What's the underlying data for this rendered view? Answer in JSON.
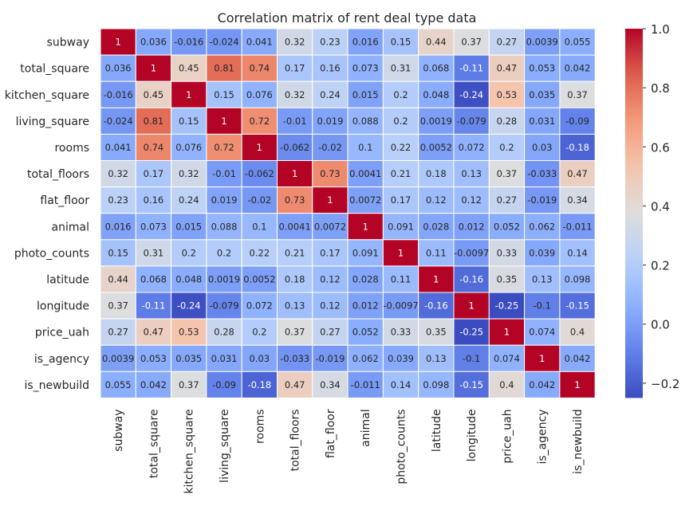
{
  "chart_data": {
    "type": "heatmap",
    "title": "Correlation matrix of rent deal type data",
    "labels": [
      "subway",
      "total_square",
      "kitchen_square",
      "living_square",
      "rooms",
      "total_floors",
      "flat_floor",
      "animal",
      "photo_counts",
      "latitude",
      "longitude",
      "price_uah",
      "is_agency",
      "is_newbuild"
    ],
    "values": [
      [
        1,
        0.036,
        -0.016,
        -0.024,
        0.041,
        0.32,
        0.23,
        0.016,
        0.15,
        0.44,
        0.37,
        0.27,
        0.0039,
        0.055
      ],
      [
        0.036,
        1,
        0.45,
        0.81,
        0.74,
        0.17,
        0.16,
        0.073,
        0.31,
        0.068,
        -0.11,
        0.47,
        0.053,
        0.042
      ],
      [
        -0.016,
        0.45,
        1,
        0.15,
        0.076,
        0.32,
        0.24,
        0.015,
        0.2,
        0.048,
        -0.24,
        0.53,
        0.035,
        0.37
      ],
      [
        -0.024,
        0.81,
        0.15,
        1,
        0.72,
        -0.01,
        0.019,
        0.088,
        0.2,
        0.0019,
        -0.079,
        0.28,
        0.031,
        -0.09
      ],
      [
        0.041,
        0.74,
        0.076,
        0.72,
        1,
        -0.062,
        -0.02,
        0.1,
        0.22,
        0.0052,
        0.072,
        0.2,
        0.03,
        -0.18
      ],
      [
        0.32,
        0.17,
        0.32,
        -0.01,
        -0.062,
        1,
        0.73,
        0.0041,
        0.21,
        0.18,
        0.13,
        0.37,
        -0.033,
        0.47
      ],
      [
        0.23,
        0.16,
        0.24,
        0.019,
        -0.02,
        0.73,
        1,
        0.0072,
        0.17,
        0.12,
        0.12,
        0.27,
        -0.019,
        0.34
      ],
      [
        0.016,
        0.073,
        0.015,
        0.088,
        0.1,
        0.0041,
        0.0072,
        1,
        0.091,
        0.028,
        0.012,
        0.052,
        0.062,
        -0.011
      ],
      [
        0.15,
        0.31,
        0.2,
        0.2,
        0.22,
        0.21,
        0.17,
        0.091,
        1,
        0.11,
        -0.0097,
        0.33,
        0.039,
        0.14
      ],
      [
        0.44,
        0.068,
        0.048,
        0.0019,
        0.0052,
        0.18,
        0.12,
        0.028,
        0.11,
        1,
        -0.16,
        0.35,
        0.13,
        0.098
      ],
      [
        0.37,
        -0.11,
        -0.24,
        -0.079,
        0.072,
        0.13,
        0.12,
        0.012,
        -0.0097,
        -0.16,
        1,
        -0.25,
        -0.1,
        -0.15
      ],
      [
        0.27,
        0.47,
        0.53,
        0.28,
        0.2,
        0.37,
        0.27,
        0.052,
        0.33,
        0.35,
        -0.25,
        1,
        0.074,
        0.4
      ],
      [
        0.0039,
        0.053,
        0.035,
        0.031,
        0.03,
        -0.033,
        -0.019,
        0.062,
        0.039,
        0.13,
        -0.1,
        0.074,
        1,
        0.042
      ],
      [
        0.055,
        0.042,
        0.37,
        -0.09,
        -0.18,
        0.47,
        0.34,
        -0.011,
        0.14,
        0.098,
        -0.15,
        0.4,
        0.042,
        1
      ]
    ],
    "colormap": "coolwarm",
    "vmin": -0.25,
    "vmax": 1,
    "colorbar_ticks": [
      -0.2,
      0.0,
      0.2,
      0.4,
      0.6,
      0.8,
      1.0
    ],
    "colorbar_tick_labels": [
      "−0.2",
      "0.0",
      "0.2",
      "0.4",
      "0.6",
      "0.8",
      "1.0"
    ]
  }
}
